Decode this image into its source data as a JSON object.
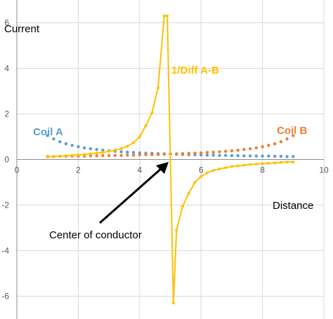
{
  "chart_data": {
    "type": "scatter",
    "title": "",
    "xlabel": "Distance",
    "ylabel": "Current",
    "xlim": [
      0,
      10
    ],
    "ylim": [
      -7,
      7
    ],
    "x_ticks": [
      "0",
      "2",
      "4",
      "6",
      "8",
      "10"
    ],
    "y_ticks": [
      "6",
      "4",
      "2",
      "0",
      "-2",
      "-4",
      "-6"
    ],
    "grid": true,
    "series": [
      {
        "name": "Coil A",
        "color": "#5B9BD5",
        "marker": "dot",
        "x": [
          1.0,
          1.2,
          1.4,
          1.6,
          1.8,
          2.0,
          2.2,
          2.4,
          2.6,
          2.8,
          3.0,
          3.2,
          3.4,
          3.6,
          3.8,
          4.0,
          4.2,
          4.4,
          4.6,
          4.8,
          5.0,
          5.2,
          5.4,
          5.6,
          5.8,
          6.0,
          6.2,
          6.4,
          6.6,
          6.8,
          7.0,
          7.2,
          7.4,
          7.6,
          7.8,
          8.0,
          8.2,
          8.4,
          8.6,
          8.8,
          9.0
        ],
        "y": [
          1.05,
          0.9,
          0.78,
          0.69,
          0.62,
          0.56,
          0.51,
          0.47,
          0.44,
          0.41,
          0.38,
          0.36,
          0.34,
          0.32,
          0.31,
          0.29,
          0.28,
          0.27,
          0.26,
          0.25,
          0.24,
          0.23,
          0.22,
          0.21,
          0.21,
          0.2,
          0.19,
          0.19,
          0.18,
          0.18,
          0.17,
          0.17,
          0.16,
          0.16,
          0.15,
          0.15,
          0.15,
          0.14,
          0.14,
          0.13,
          0.13
        ]
      },
      {
        "name": "Coil B",
        "color": "#ED7D31",
        "marker": "dot",
        "x": [
          1.0,
          1.2,
          1.4,
          1.6,
          1.8,
          2.0,
          2.2,
          2.4,
          2.6,
          2.8,
          3.0,
          3.2,
          3.4,
          3.6,
          3.8,
          4.0,
          4.2,
          4.4,
          4.6,
          4.8,
          5.0,
          5.2,
          5.4,
          5.6,
          5.8,
          6.0,
          6.2,
          6.4,
          6.6,
          6.8,
          7.0,
          7.2,
          7.4,
          7.6,
          7.8,
          8.0,
          8.2,
          8.4,
          8.6,
          8.8,
          9.0
        ],
        "y": [
          0.13,
          0.13,
          0.14,
          0.14,
          0.15,
          0.15,
          0.15,
          0.16,
          0.16,
          0.17,
          0.17,
          0.18,
          0.18,
          0.19,
          0.19,
          0.2,
          0.21,
          0.21,
          0.22,
          0.23,
          0.24,
          0.25,
          0.26,
          0.27,
          0.28,
          0.29,
          0.31,
          0.32,
          0.34,
          0.36,
          0.38,
          0.41,
          0.44,
          0.47,
          0.51,
          0.56,
          0.62,
          0.69,
          0.78,
          0.9,
          1.05
        ]
      },
      {
        "name": "1/Diff A-B",
        "color": "#FFC000",
        "marker": "dot-line",
        "x": [
          1.0,
          1.2,
          1.4,
          1.6,
          1.8,
          2.0,
          2.2,
          2.4,
          2.6,
          2.8,
          3.0,
          3.2,
          3.4,
          3.6,
          3.8,
          4.0,
          4.2,
          4.4,
          4.6,
          4.8,
          4.9,
          5.1,
          5.2,
          5.4,
          5.6,
          5.8,
          6.0,
          6.2,
          6.4,
          6.6,
          6.8,
          7.0,
          7.2,
          7.4,
          7.6,
          7.8,
          8.0,
          8.2,
          8.4,
          8.6,
          8.8,
          9.0
        ],
        "y": [
          0.11,
          0.13,
          0.15,
          0.16,
          0.18,
          0.2,
          0.22,
          0.25,
          0.28,
          0.31,
          0.36,
          0.41,
          0.48,
          0.58,
          0.74,
          1.0,
          1.48,
          2.05,
          3.15,
          6.3,
          6.3,
          -6.3,
          -3.1,
          -2.05,
          -1.48,
          -1.0,
          -0.74,
          -0.58,
          -0.48,
          -0.41,
          -0.36,
          -0.31,
          -0.28,
          -0.25,
          -0.22,
          -0.2,
          -0.18,
          -0.16,
          -0.15,
          -0.13,
          -0.11,
          -0.11
        ]
      }
    ],
    "annotations": [
      {
        "text": "Coil A",
        "color": "#5B9BD5"
      },
      {
        "text": "Coil B",
        "color": "#ED7D31"
      },
      {
        "text": "1/Diff A-B",
        "color": "#FFC000"
      },
      {
        "text": "Center of conductor",
        "color": "#000000",
        "arrow_to": [
          5.0,
          0.25
        ]
      }
    ]
  }
}
